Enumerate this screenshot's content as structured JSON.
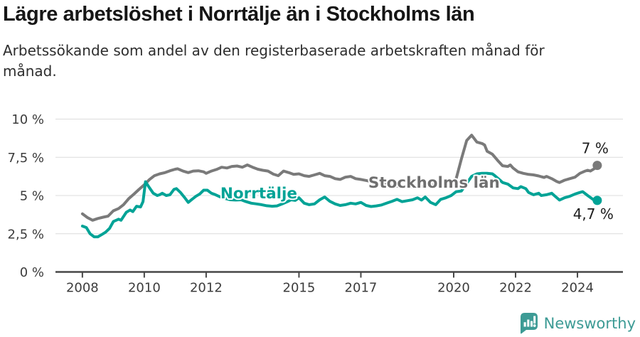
{
  "header": {
    "title": "Lägre arbetslöshet i Norrtälje än i Stockholms län",
    "subtitle": "Arbetssökande som andel av den registerbaserade arbetskraften månad för månad."
  },
  "footer": {
    "brand": "Newsworthy",
    "logo_icon": "bar-chart-speech-bubble",
    "brand_color": "#3d9b95"
  },
  "colors": {
    "background": "#ffffff",
    "gridline": "#dcdcdc",
    "axis_line": "#474747",
    "axis_text": "#3c3c3c",
    "end_label_text": "#1d1d1d",
    "stockholm_gray": "#7a7a7a",
    "norrtalje_teal": "#00a396"
  },
  "chart_data": {
    "type": "line",
    "title": "Lägre arbetslöshet i Norrtälje än i Stockholms län",
    "subtitle": "Arbetssökande som andel av den registerbaserade arbetskraften månad för månad.",
    "grid": "horizontal-only",
    "legend_position": "inline-labels",
    "x_axis": {
      "range": [
        2007.13,
        2025.47
      ],
      "ticks": [
        {
          "v": 2008,
          "label": "2008"
        },
        {
          "v": 2010,
          "label": "2010"
        },
        {
          "v": 2012,
          "label": "2012"
        },
        {
          "v": 2015,
          "label": "2015"
        },
        {
          "v": 2017,
          "label": "2017"
        },
        {
          "v": 2020,
          "label": "2020"
        },
        {
          "v": 2022,
          "label": "2022"
        },
        {
          "v": 2024,
          "label": "2024"
        }
      ]
    },
    "y_axis": {
      "range": [
        0,
        10
      ],
      "unit": "%",
      "ticks": [
        {
          "v": 0,
          "label": "0 %"
        },
        {
          "v": 2.5,
          "label": "2,5 %"
        },
        {
          "v": 5,
          "label": "5 %"
        },
        {
          "v": 7.5,
          "label": "7,5 %"
        },
        {
          "v": 10,
          "label": "10 %"
        }
      ]
    },
    "series": [
      {
        "name": "Stockholms län",
        "color": "#7a7a7a",
        "label_color": "#6f6f6f",
        "end_label": "7 %",
        "end_value": 7.0,
        "label_pos": {
          "x": 2017.24,
          "y": 5.51
        },
        "points": [
          [
            2008.0,
            3.8
          ],
          [
            2008.17,
            3.55
          ],
          [
            2008.33,
            3.38
          ],
          [
            2008.5,
            3.5
          ],
          [
            2008.67,
            3.58
          ],
          [
            2008.83,
            3.65
          ],
          [
            2009.0,
            4.0
          ],
          [
            2009.17,
            4.15
          ],
          [
            2009.33,
            4.4
          ],
          [
            2009.5,
            4.8
          ],
          [
            2009.67,
            5.1
          ],
          [
            2009.83,
            5.4
          ],
          [
            2010.0,
            5.7
          ],
          [
            2010.17,
            6.05
          ],
          [
            2010.33,
            6.3
          ],
          [
            2010.5,
            6.42
          ],
          [
            2010.67,
            6.5
          ],
          [
            2010.83,
            6.62
          ],
          [
            2011.0,
            6.72
          ],
          [
            2011.08,
            6.75
          ],
          [
            2011.25,
            6.6
          ],
          [
            2011.42,
            6.5
          ],
          [
            2011.58,
            6.6
          ],
          [
            2011.75,
            6.62
          ],
          [
            2011.92,
            6.55
          ],
          [
            2012.0,
            6.45
          ],
          [
            2012.17,
            6.6
          ],
          [
            2012.33,
            6.7
          ],
          [
            2012.5,
            6.85
          ],
          [
            2012.67,
            6.8
          ],
          [
            2012.83,
            6.9
          ],
          [
            2013.0,
            6.93
          ],
          [
            2013.17,
            6.85
          ],
          [
            2013.33,
            7.0
          ],
          [
            2013.5,
            6.85
          ],
          [
            2013.67,
            6.72
          ],
          [
            2013.83,
            6.65
          ],
          [
            2014.0,
            6.6
          ],
          [
            2014.17,
            6.4
          ],
          [
            2014.33,
            6.3
          ],
          [
            2014.5,
            6.6
          ],
          [
            2014.67,
            6.5
          ],
          [
            2014.83,
            6.38
          ],
          [
            2015.0,
            6.42
          ],
          [
            2015.17,
            6.3
          ],
          [
            2015.33,
            6.25
          ],
          [
            2015.5,
            6.35
          ],
          [
            2015.67,
            6.45
          ],
          [
            2015.83,
            6.3
          ],
          [
            2016.0,
            6.25
          ],
          [
            2016.17,
            6.1
          ],
          [
            2016.33,
            6.05
          ],
          [
            2016.5,
            6.2
          ],
          [
            2016.67,
            6.25
          ],
          [
            2016.83,
            6.1
          ],
          [
            2017.0,
            6.05
          ],
          [
            2017.25,
            5.95
          ],
          [
            2017.5,
            5.85
          ],
          [
            2017.75,
            5.75
          ],
          [
            2018.0,
            5.65
          ],
          [
            2018.25,
            5.6
          ],
          [
            2018.5,
            5.55
          ],
          [
            2018.75,
            5.6
          ],
          [
            2019.0,
            5.6
          ],
          [
            2019.25,
            5.65
          ],
          [
            2019.5,
            5.75
          ],
          [
            2019.75,
            5.85
          ],
          [
            2019.92,
            5.95
          ],
          [
            2020.08,
            6.1
          ],
          [
            2020.25,
            7.4
          ],
          [
            2020.42,
            8.6
          ],
          [
            2020.58,
            8.95
          ],
          [
            2020.75,
            8.5
          ],
          [
            2020.92,
            8.4
          ],
          [
            2021.0,
            8.3
          ],
          [
            2021.08,
            7.9
          ],
          [
            2021.25,
            7.7
          ],
          [
            2021.42,
            7.3
          ],
          [
            2021.58,
            6.95
          ],
          [
            2021.75,
            6.9
          ],
          [
            2021.83,
            7.0
          ],
          [
            2021.92,
            6.8
          ],
          [
            2022.08,
            6.55
          ],
          [
            2022.25,
            6.45
          ],
          [
            2022.42,
            6.38
          ],
          [
            2022.58,
            6.35
          ],
          [
            2022.75,
            6.28
          ],
          [
            2022.92,
            6.18
          ],
          [
            2023.0,
            6.25
          ],
          [
            2023.17,
            6.1
          ],
          [
            2023.33,
            5.92
          ],
          [
            2023.42,
            5.85
          ],
          [
            2023.58,
            6.0
          ],
          [
            2023.75,
            6.1
          ],
          [
            2023.92,
            6.2
          ],
          [
            2024.08,
            6.45
          ],
          [
            2024.25,
            6.6
          ],
          [
            2024.33,
            6.65
          ],
          [
            2024.42,
            6.6
          ],
          [
            2024.58,
            6.8
          ],
          [
            2024.64,
            6.97
          ]
        ]
      },
      {
        "name": "Norrtälje",
        "color": "#00a396",
        "label_color": "#00a396",
        "end_label": "4,7 %",
        "end_value": 4.7,
        "label_pos": {
          "x": 2012.46,
          "y": 4.81
        },
        "points": [
          [
            2008.0,
            3.0
          ],
          [
            2008.13,
            2.9
          ],
          [
            2008.25,
            2.5
          ],
          [
            2008.38,
            2.3
          ],
          [
            2008.5,
            2.3
          ],
          [
            2008.63,
            2.45
          ],
          [
            2008.75,
            2.6
          ],
          [
            2008.88,
            2.85
          ],
          [
            2009.0,
            3.3
          ],
          [
            2009.17,
            3.45
          ],
          [
            2009.25,
            3.38
          ],
          [
            2009.42,
            3.9
          ],
          [
            2009.54,
            4.05
          ],
          [
            2009.63,
            3.95
          ],
          [
            2009.75,
            4.3
          ],
          [
            2009.88,
            4.25
          ],
          [
            2009.96,
            4.6
          ],
          [
            2010.04,
            5.9
          ],
          [
            2010.17,
            5.5
          ],
          [
            2010.29,
            5.15
          ],
          [
            2010.42,
            5.0
          ],
          [
            2010.5,
            5.05
          ],
          [
            2010.58,
            5.15
          ],
          [
            2010.71,
            5.0
          ],
          [
            2010.83,
            5.05
          ],
          [
            2010.96,
            5.4
          ],
          [
            2011.04,
            5.45
          ],
          [
            2011.17,
            5.2
          ],
          [
            2011.29,
            4.9
          ],
          [
            2011.42,
            4.55
          ],
          [
            2011.54,
            4.75
          ],
          [
            2011.67,
            4.95
          ],
          [
            2011.79,
            5.1
          ],
          [
            2011.92,
            5.35
          ],
          [
            2012.04,
            5.35
          ],
          [
            2012.17,
            5.15
          ],
          [
            2012.3,
            5.05
          ],
          [
            2012.46,
            4.9
          ],
          [
            2012.63,
            4.8
          ],
          [
            2012.79,
            4.72
          ],
          [
            2012.96,
            4.7
          ],
          [
            2013.13,
            4.72
          ],
          [
            2013.29,
            4.6
          ],
          [
            2013.46,
            4.5
          ],
          [
            2013.63,
            4.45
          ],
          [
            2013.79,
            4.4
          ],
          [
            2013.96,
            4.33
          ],
          [
            2014.13,
            4.3
          ],
          [
            2014.29,
            4.32
          ],
          [
            2014.46,
            4.45
          ],
          [
            2014.63,
            4.6
          ],
          [
            2014.75,
            4.72
          ],
          [
            2014.88,
            4.68
          ],
          [
            2015.0,
            4.85
          ],
          [
            2015.17,
            4.5
          ],
          [
            2015.33,
            4.4
          ],
          [
            2015.5,
            4.45
          ],
          [
            2015.67,
            4.72
          ],
          [
            2015.83,
            4.9
          ],
          [
            2016.0,
            4.62
          ],
          [
            2016.17,
            4.45
          ],
          [
            2016.33,
            4.35
          ],
          [
            2016.5,
            4.4
          ],
          [
            2016.67,
            4.5
          ],
          [
            2016.83,
            4.45
          ],
          [
            2017.0,
            4.55
          ],
          [
            2017.17,
            4.35
          ],
          [
            2017.33,
            4.28
          ],
          [
            2017.5,
            4.32
          ],
          [
            2017.67,
            4.38
          ],
          [
            2017.83,
            4.5
          ],
          [
            2018.0,
            4.62
          ],
          [
            2018.17,
            4.75
          ],
          [
            2018.33,
            4.6
          ],
          [
            2018.5,
            4.66
          ],
          [
            2018.67,
            4.72
          ],
          [
            2018.83,
            4.85
          ],
          [
            2018.96,
            4.7
          ],
          [
            2019.08,
            4.9
          ],
          [
            2019.25,
            4.55
          ],
          [
            2019.42,
            4.4
          ],
          [
            2019.58,
            4.75
          ],
          [
            2019.75,
            4.85
          ],
          [
            2019.92,
            5.0
          ],
          [
            2020.08,
            5.25
          ],
          [
            2020.25,
            5.3
          ],
          [
            2020.42,
            5.8
          ],
          [
            2020.58,
            6.25
          ],
          [
            2020.75,
            6.42
          ],
          [
            2020.92,
            6.45
          ],
          [
            2021.08,
            6.45
          ],
          [
            2021.25,
            6.42
          ],
          [
            2021.33,
            6.3
          ],
          [
            2021.5,
            6.0
          ],
          [
            2021.58,
            5.85
          ],
          [
            2021.75,
            5.75
          ],
          [
            2021.92,
            5.5
          ],
          [
            2022.08,
            5.45
          ],
          [
            2022.17,
            5.58
          ],
          [
            2022.33,
            5.45
          ],
          [
            2022.42,
            5.2
          ],
          [
            2022.58,
            5.05
          ],
          [
            2022.75,
            5.15
          ],
          [
            2022.83,
            5.0
          ],
          [
            2023.0,
            5.05
          ],
          [
            2023.17,
            5.15
          ],
          [
            2023.25,
            5.0
          ],
          [
            2023.42,
            4.7
          ],
          [
            2023.58,
            4.85
          ],
          [
            2023.75,
            4.95
          ],
          [
            2023.92,
            5.1
          ],
          [
            2024.08,
            5.2
          ],
          [
            2024.17,
            5.25
          ],
          [
            2024.33,
            5.0
          ],
          [
            2024.5,
            4.75
          ],
          [
            2024.64,
            4.68
          ]
        ]
      }
    ]
  }
}
